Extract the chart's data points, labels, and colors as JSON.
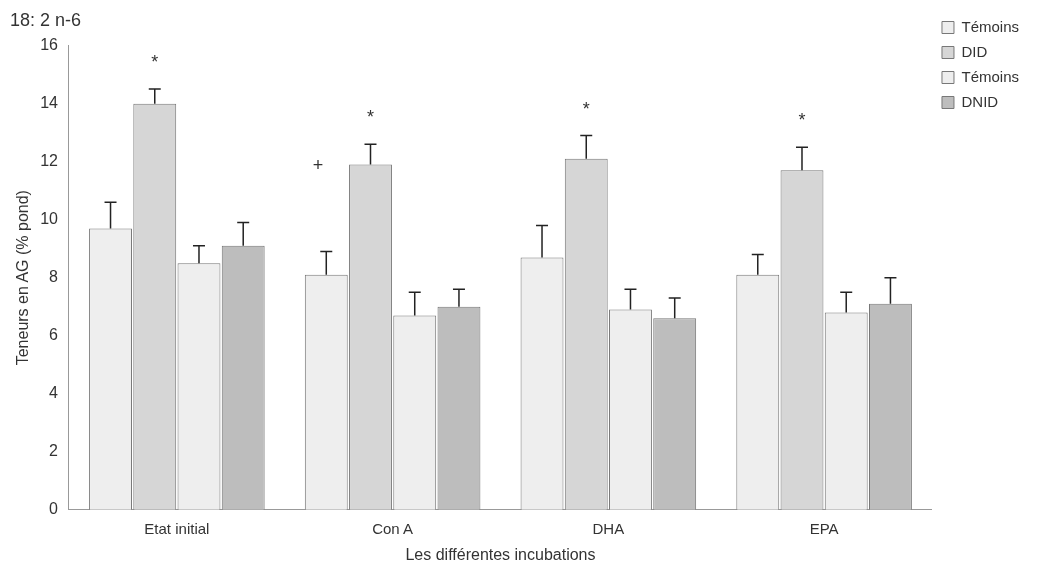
{
  "chart_data": {
    "type": "bar",
    "title": "18: 2 n-6",
    "xlabel": "Les différentes incubations",
    "ylabel": "Teneurs en AG (% pond)",
    "categories": [
      "Etat initial",
      "Con A",
      "DHA",
      "EPA"
    ],
    "series": [
      {
        "name": "Témoins",
        "color": "#eeeeee",
        "values": [
          9.7,
          8.1,
          8.7,
          8.1
        ],
        "errors": [
          [
            9.7,
            10.6
          ],
          [
            8.1,
            8.9
          ],
          [
            8.7,
            9.8
          ],
          [
            8.1,
            8.8
          ]
        ]
      },
      {
        "name": "DID",
        "color": "#d6d6d6",
        "values": [
          14.0,
          11.9,
          12.1,
          11.7
        ],
        "errors": [
          [
            14.0,
            14.5
          ],
          [
            11.9,
            12.6
          ],
          [
            12.1,
            12.9
          ],
          [
            11.7,
            12.5
          ]
        ]
      },
      {
        "name": "Témoins",
        "color": "#eeeeee",
        "values": [
          8.5,
          6.7,
          6.9,
          6.8
        ],
        "errors": [
          [
            8.5,
            9.1
          ],
          [
            6.7,
            7.5
          ],
          [
            6.9,
            7.6
          ],
          [
            6.8,
            7.5
          ]
        ]
      },
      {
        "name": "DNID",
        "color": "#bdbdbd",
        "values": [
          9.1,
          7.0,
          6.6,
          7.1
        ],
        "errors": [
          [
            9.1,
            9.9
          ],
          [
            7.0,
            7.6
          ],
          [
            6.6,
            7.3
          ],
          [
            7.1,
            8.0
          ]
        ]
      }
    ],
    "ylim": [
      0,
      16
    ],
    "yticks": [
      0,
      2,
      4,
      6,
      8,
      10,
      12,
      14,
      16
    ],
    "grid": false,
    "legend": "top right",
    "annotations": [
      {
        "text": "*",
        "x": "Etat initial",
        "y": 14.0
      },
      {
        "text": "*",
        "x": "Con A",
        "y": 11.9
      },
      "+",
      {
        "text": "*",
        "x": "DHA",
        "y": 12.1
      },
      {
        "text": "*",
        "x": "EPA",
        "y": 11.7
      }
    ]
  }
}
